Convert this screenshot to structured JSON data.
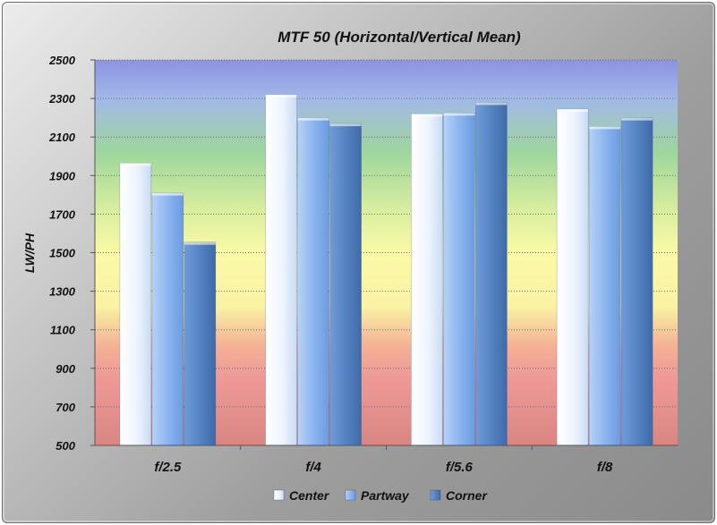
{
  "chart_data": {
    "type": "bar",
    "title": "MTF 50 (Horizontal/Vertical Mean)",
    "xlabel": "",
    "ylabel": "LW/PH",
    "categories": [
      "f/2.5",
      "f/4",
      "f/5.6",
      "f/8"
    ],
    "series": [
      {
        "name": "Center",
        "values": [
          1965,
          2320,
          2220,
          2245
        ],
        "color": "#e9f1fc"
      },
      {
        "name": "Partway",
        "values": [
          1810,
          2200,
          2225,
          2155
        ],
        "color": "#8fb7ee"
      },
      {
        "name": "Corner",
        "values": [
          1555,
          2170,
          2280,
          2200
        ],
        "color": "#5584c4"
      }
    ],
    "ylim": [
      500,
      2500
    ],
    "yticks": [
      500,
      700,
      900,
      1100,
      1300,
      1500,
      1700,
      1900,
      2100,
      2300,
      2500
    ],
    "grid": true,
    "legend_position": "bottom",
    "background_bands": [
      "#8c96e4",
      "#9dd7a0",
      "#fafaa4",
      "#e08e8a"
    ]
  }
}
